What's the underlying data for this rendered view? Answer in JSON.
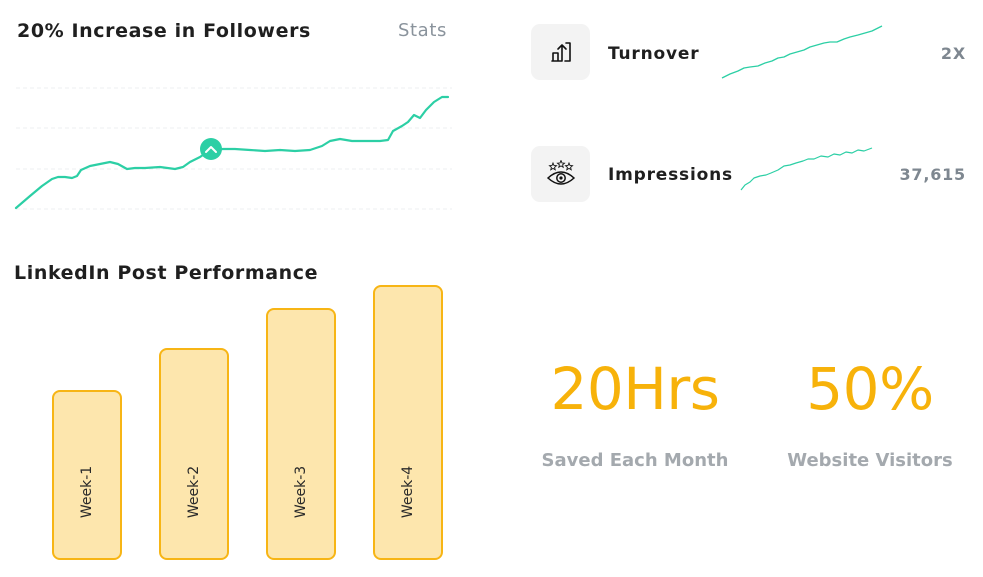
{
  "followers_card": {
    "title": "20% Increase in Followers",
    "stats_link": "Stats",
    "line_color": "#2ccfa5"
  },
  "metrics": [
    {
      "label": "Turnover",
      "value": "2X",
      "icon": "growth-arrow-icon"
    },
    {
      "label": "Impressions",
      "value": "37,615",
      "icon": "eye-stars-icon"
    }
  ],
  "post_performance": {
    "title": "LinkedIn Post Performance",
    "bar_color": "#fde6ad",
    "bar_border_color": "#f7b515"
  },
  "chart_data": {
    "type": "bar",
    "title": "LinkedIn Post Performance",
    "categories": [
      "Week-1",
      "Week-2",
      "Week-3",
      "Week-4"
    ],
    "values": [
      60,
      75,
      89,
      97
    ],
    "ylim": [
      0,
      100
    ],
    "grid": false
  },
  "highlights": [
    {
      "value": "20Hrs",
      "caption": "Saved Each Month"
    },
    {
      "value": "50%",
      "caption": "Website Visitors"
    }
  ],
  "accent_color": "#f7b20a"
}
